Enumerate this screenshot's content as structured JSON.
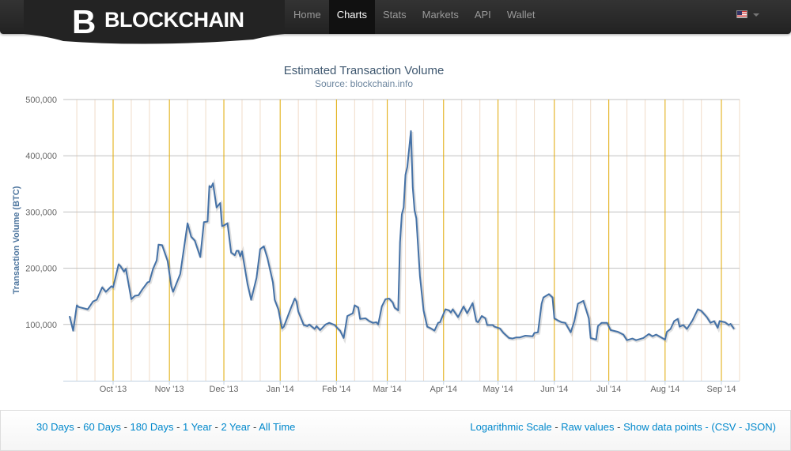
{
  "nav": {
    "brand": "BLOCKCHAIN",
    "items": [
      "Home",
      "Charts",
      "Stats",
      "Markets",
      "API",
      "Wallet"
    ],
    "active": "Charts",
    "flag": "us-flag-icon"
  },
  "footer": {
    "ranges": [
      "30 Days",
      "60 Days",
      "180 Days",
      "1 Year",
      "2 Year",
      "All Time"
    ],
    "sep": " - ",
    "options": [
      "Logarithmic Scale",
      "Raw values",
      "Show data points"
    ],
    "open": " - (",
    "csv": "CSV",
    "json": "JSON",
    "close": ")"
  },
  "colors": {
    "line": "#4572a7",
    "month_grid": "#e0a800",
    "minor_grid": "#f0dcc8",
    "y_grid": "#c0c0c0",
    "link": "#0088cc"
  },
  "chart_data": {
    "type": "line",
    "title": "Estimated Transaction Volume",
    "subtitle": "Source: blockchain.info",
    "xlabel": "",
    "ylabel": "Transaction Volume (BTC)",
    "x_unit": "days since 2013-10-01",
    "xlim": [
      -26,
      345
    ],
    "ylim": [
      0,
      500000
    ],
    "yticks": [
      100000,
      200000,
      300000,
      400000,
      500000
    ],
    "ytick_labels": [
      "100,000",
      "200,000",
      "300,000",
      "400,000",
      "500,000"
    ],
    "xticks": [
      0,
      31,
      61,
      92,
      123,
      151,
      182,
      212,
      243,
      273,
      304,
      335
    ],
    "xtick_labels": [
      "Oct '13",
      "Nov '13",
      "Dec '13",
      "Jan '14",
      "Feb '14",
      "Mar '14",
      "Apr '14",
      "May '14",
      "Jun '14",
      "Jul '14",
      "Aug '14",
      "Sep '14"
    ],
    "grid": true,
    "series": [
      {
        "name": "Estimated Transaction Volume",
        "unit": "BTC",
        "points": [
          [
            -24,
            115000
          ],
          [
            -22,
            89000
          ],
          [
            -20,
            134000
          ],
          [
            -19,
            131000
          ],
          [
            -14,
            127000
          ],
          [
            -11,
            141000
          ],
          [
            -9,
            144000
          ],
          [
            -6,
            166000
          ],
          [
            -4,
            158000
          ],
          [
            -1,
            168000
          ],
          [
            0,
            166000
          ],
          [
            3,
            207000
          ],
          [
            4,
            204000
          ],
          [
            6,
            194000
          ],
          [
            7,
            199000
          ],
          [
            10,
            145000
          ],
          [
            12,
            151000
          ],
          [
            14,
            152000
          ],
          [
            16,
            162000
          ],
          [
            19,
            175000
          ],
          [
            20,
            176000
          ],
          [
            22,
            199000
          ],
          [
            24,
            214000
          ],
          [
            25,
            242000
          ],
          [
            27,
            241000
          ],
          [
            30,
            213000
          ],
          [
            32,
            168000
          ],
          [
            33,
            158000
          ],
          [
            37,
            190000
          ],
          [
            41,
            280000
          ],
          [
            43,
            256000
          ],
          [
            45,
            249000
          ],
          [
            48,
            220000
          ],
          [
            50,
            282000
          ],
          [
            52,
            283000
          ],
          [
            53,
            346000
          ],
          [
            54,
            344000
          ],
          [
            55,
            351000
          ],
          [
            57,
            308000
          ],
          [
            59,
            316000
          ],
          [
            60,
            275000
          ],
          [
            61,
            276000
          ],
          [
            63,
            280000
          ],
          [
            65,
            228000
          ],
          [
            67,
            223000
          ],
          [
            68,
            231000
          ],
          [
            69,
            231000
          ],
          [
            70,
            221000
          ],
          [
            71,
            230000
          ],
          [
            74,
            172000
          ],
          [
            76,
            144000
          ],
          [
            79,
            183000
          ],
          [
            81,
            234000
          ],
          [
            83,
            239000
          ],
          [
            85,
            218000
          ],
          [
            88,
            175000
          ],
          [
            89,
            144000
          ],
          [
            91,
            127000
          ],
          [
            93,
            93000
          ],
          [
            94,
            96000
          ],
          [
            98,
            130000
          ],
          [
            99,
            138000
          ],
          [
            100,
            146000
          ],
          [
            101,
            141000
          ],
          [
            102,
            123000
          ],
          [
            105,
            99000
          ],
          [
            107,
            97000
          ],
          [
            108,
            100000
          ],
          [
            111,
            92000
          ],
          [
            112,
            97000
          ],
          [
            114,
            90000
          ],
          [
            117,
            100000
          ],
          [
            119,
            103000
          ],
          [
            122,
            99000
          ],
          [
            124,
            92000
          ],
          [
            125,
            89000
          ],
          [
            127,
            76000
          ],
          [
            129,
            115000
          ],
          [
            132,
            120000
          ],
          [
            133,
            134000
          ],
          [
            135,
            130000
          ],
          [
            136,
            110000
          ],
          [
            139,
            111000
          ],
          [
            141,
            106000
          ],
          [
            143,
            103000
          ],
          [
            145,
            104000
          ],
          [
            146,
            100000
          ],
          [
            148,
            132000
          ],
          [
            150,
            145000
          ],
          [
            152,
            146000
          ],
          [
            154,
            139000
          ],
          [
            155,
            130000
          ],
          [
            157,
            125000
          ],
          [
            158,
            246000
          ],
          [
            159,
            296000
          ],
          [
            160,
            308000
          ],
          [
            161,
            366000
          ],
          [
            162,
            380000
          ],
          [
            164,
            444000
          ],
          [
            165,
            344000
          ],
          [
            166,
            303000
          ],
          [
            167,
            289000
          ],
          [
            169,
            186000
          ],
          [
            171,
            125000
          ],
          [
            173,
            96000
          ],
          [
            175,
            93000
          ],
          [
            177,
            89000
          ],
          [
            179,
            103000
          ],
          [
            180,
            104000
          ],
          [
            183,
            127000
          ],
          [
            185,
            125000
          ],
          [
            186,
            121000
          ],
          [
            187,
            127000
          ],
          [
            190,
            113000
          ],
          [
            193,
            132000
          ],
          [
            195,
            120000
          ],
          [
            198,
            138000
          ],
          [
            200,
            106000
          ],
          [
            201,
            104000
          ],
          [
            203,
            115000
          ],
          [
            205,
            111000
          ],
          [
            206,
            99000
          ],
          [
            209,
            99000
          ],
          [
            210,
            96000
          ],
          [
            213,
            93000
          ],
          [
            215,
            85000
          ],
          [
            218,
            76000
          ],
          [
            220,
            75000
          ],
          [
            222,
            77000
          ],
          [
            224,
            77000
          ],
          [
            227,
            80000
          ],
          [
            231,
            79000
          ],
          [
            232,
            85000
          ],
          [
            234,
            86000
          ],
          [
            236,
            137000
          ],
          [
            237,
            148000
          ],
          [
            240,
            154000
          ],
          [
            242,
            148000
          ],
          [
            243,
            111000
          ],
          [
            245,
            107000
          ],
          [
            247,
            104000
          ],
          [
            249,
            103000
          ],
          [
            252,
            86000
          ],
          [
            254,
            106000
          ],
          [
            256,
            137000
          ],
          [
            259,
            142000
          ],
          [
            262,
            111000
          ],
          [
            263,
            76000
          ],
          [
            266,
            73000
          ],
          [
            267,
            97000
          ],
          [
            269,
            103000
          ],
          [
            272,
            103000
          ],
          [
            274,
            90000
          ],
          [
            278,
            87000
          ],
          [
            281,
            82000
          ],
          [
            283,
            72000
          ],
          [
            286,
            75000
          ],
          [
            288,
            72000
          ],
          [
            292,
            76000
          ],
          [
            295,
            83000
          ],
          [
            297,
            79000
          ],
          [
            299,
            82000
          ],
          [
            304,
            73000
          ],
          [
            305,
            87000
          ],
          [
            307,
            92000
          ],
          [
            309,
            106000
          ],
          [
            311,
            110000
          ],
          [
            312,
            96000
          ],
          [
            314,
            99000
          ],
          [
            316,
            92000
          ],
          [
            319,
            107000
          ],
          [
            322,
            127000
          ],
          [
            324,
            124000
          ],
          [
            327,
            113000
          ],
          [
            329,
            103000
          ],
          [
            331,
            106000
          ],
          [
            333,
            94000
          ],
          [
            334,
            106000
          ],
          [
            337,
            104000
          ],
          [
            339,
            99000
          ],
          [
            340,
            101000
          ],
          [
            342,
            92000
          ]
        ]
      }
    ]
  }
}
